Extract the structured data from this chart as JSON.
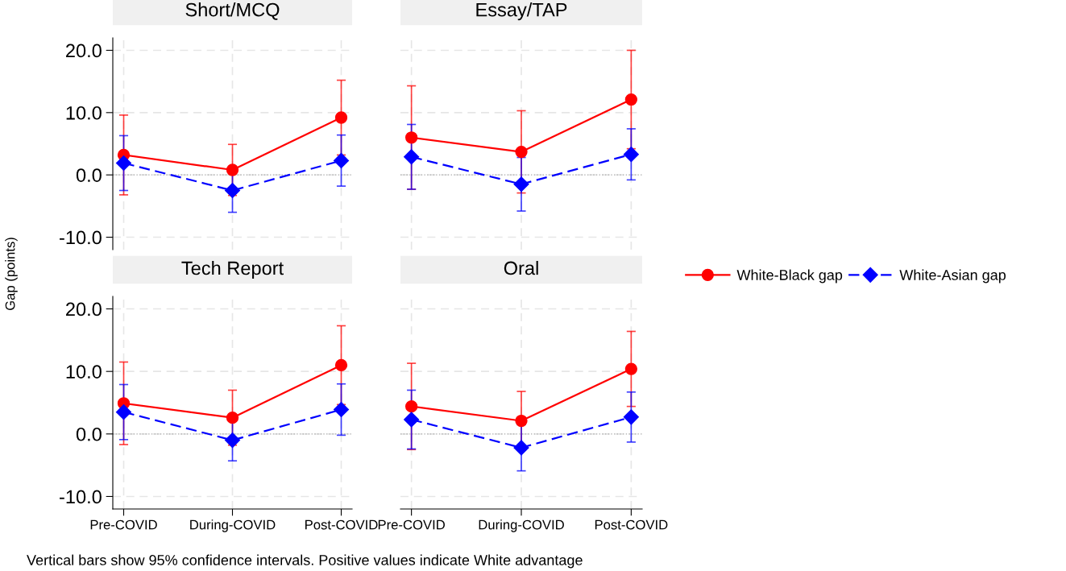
{
  "chart_data": [
    {
      "type": "line",
      "title": "Short/MCQ",
      "ylabel": "Gap (points)",
      "categories": [
        "Pre-COVID",
        "During-COVID",
        "Post-COVID"
      ],
      "ylim": [
        -12,
        22
      ],
      "yticks": [
        {
          "value": -10,
          "label": "-10.0"
        },
        {
          "value": 0,
          "label": "0.0"
        },
        {
          "value": 10,
          "label": "10.0"
        },
        {
          "value": 20,
          "label": "20.0"
        }
      ],
      "tick_labels": "y",
      "grid": true,
      "legend": "right",
      "ref_lines": [
        {
          "axis": "y",
          "value": 0,
          "color": "#aaaaaa",
          "line_style": "dotted"
        }
      ],
      "annotations": [
        "Vertical bars show 95% confidence intervals. Positive values indicate White advantage"
      ],
      "series": [
        {
          "name": "White-Black gap",
          "color": "#ff0000",
          "marker": "circle",
          "line_style": "solid",
          "values": [
            3.2,
            0.8,
            9.2
          ],
          "errors": [
            6.4,
            4.1,
            6.0
          ]
        },
        {
          "name": "White-Asian gap",
          "color": "#0000ff",
          "marker": "diamond",
          "line_style": "dashed",
          "values": [
            1.9,
            -2.5,
            2.3
          ],
          "errors": [
            4.4,
            3.5,
            4.1
          ]
        }
      ]
    },
    {
      "type": "line",
      "title": "Essay/TAP",
      "categories": [
        "Pre-COVID",
        "During-COVID",
        "Post-COVID"
      ],
      "ylim": [
        -12,
        22
      ],
      "yticks": [
        {
          "value": -10,
          "label": "-10.0"
        },
        {
          "value": 0,
          "label": "0.0"
        },
        {
          "value": 10,
          "label": "10.0"
        },
        {
          "value": 20,
          "label": "20.0"
        }
      ],
      "tick_labels": false,
      "grid": true,
      "ref_lines": [
        {
          "axis": "y",
          "value": 0,
          "color": "#aaaaaa",
          "line_style": "dotted"
        }
      ],
      "series": [
        {
          "name": "White-Black gap",
          "color": "#ff0000",
          "marker": "circle",
          "line_style": "solid",
          "values": [
            6.0,
            3.7,
            12.1
          ],
          "errors": [
            8.3,
            6.6,
            7.9
          ]
        },
        {
          "name": "White-Asian gap",
          "color": "#0000ff",
          "marker": "diamond",
          "line_style": "dashed",
          "values": [
            2.9,
            -1.5,
            3.3
          ],
          "errors": [
            5.2,
            4.3,
            4.1
          ]
        }
      ]
    },
    {
      "type": "line",
      "title": "Tech Report",
      "categories": [
        "Pre-COVID",
        "During-COVID",
        "Post-COVID"
      ],
      "ylim": [
        -12,
        22
      ],
      "yticks": [
        {
          "value": -10,
          "label": "-10.0"
        },
        {
          "value": 0,
          "label": "0.0"
        },
        {
          "value": 10,
          "label": "10.0"
        },
        {
          "value": 20,
          "label": "20.0"
        }
      ],
      "grid": true,
      "ref_lines": [
        {
          "axis": "y",
          "value": 0,
          "color": "#aaaaaa",
          "line_style": "dotted"
        }
      ],
      "series": [
        {
          "name": "White-Black gap",
          "color": "#ff0000",
          "marker": "circle",
          "line_style": "solid",
          "values": [
            4.9,
            2.6,
            11.0
          ],
          "errors": [
            6.6,
            4.4,
            6.3
          ]
        },
        {
          "name": "White-Asian gap",
          "color": "#0000ff",
          "marker": "diamond",
          "line_style": "dashed",
          "values": [
            3.5,
            -1.0,
            3.9
          ],
          "errors": [
            4.4,
            3.3,
            4.1
          ]
        }
      ]
    },
    {
      "type": "line",
      "title": "Oral",
      "categories": [
        "Pre-COVID",
        "During-COVID",
        "Post-COVID"
      ],
      "ylim": [
        -12,
        22
      ],
      "yticks": [
        {
          "value": -10,
          "label": "-10.0"
        },
        {
          "value": 0,
          "label": "0.0"
        },
        {
          "value": 10,
          "label": "10.0"
        },
        {
          "value": 20,
          "label": "20.0"
        }
      ],
      "tick_labels": "x",
      "grid": true,
      "ref_lines": [
        {
          "axis": "y",
          "value": 0,
          "color": "#aaaaaa",
          "line_style": "dotted"
        }
      ],
      "series": [
        {
          "name": "White-Black gap",
          "color": "#ff0000",
          "marker": "circle",
          "line_style": "solid",
          "values": [
            4.4,
            2.1,
            10.4
          ],
          "errors": [
            6.9,
            4.7,
            6.0
          ]
        },
        {
          "name": "White-Asian gap",
          "color": "#0000ff",
          "marker": "diamond",
          "line_style": "dashed",
          "values": [
            2.3,
            -2.2,
            2.7
          ],
          "errors": [
            4.7,
            3.7,
            4.0
          ]
        }
      ]
    }
  ]
}
